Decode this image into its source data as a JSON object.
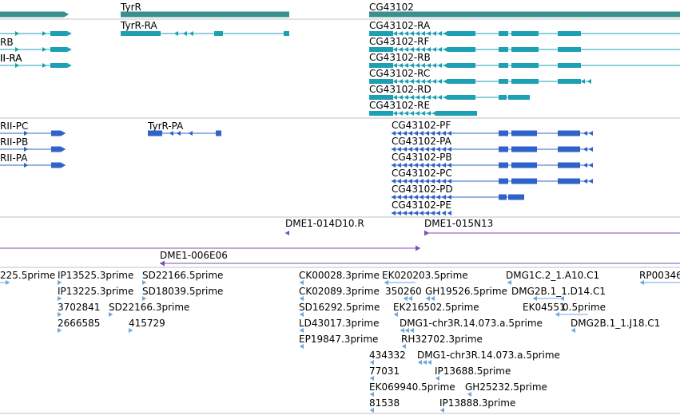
{
  "colors": {
    "background": "#ffffff",
    "divider": "#c0c0c0",
    "gene": "#3a8f8f",
    "transcript": "#1ea0b4",
    "protein": "#2f63c9",
    "clone": "#7d4fb5",
    "est": "#6fa8dc"
  },
  "genes": [
    {
      "label": "",
      "kind": "gene"
    },
    {
      "label": "TyrR",
      "kind": "gene"
    },
    {
      "label": "CG43102",
      "kind": "gene"
    }
  ],
  "transcripts": [
    {
      "label": "RB"
    },
    {
      "label": "II-RA"
    },
    {
      "label": "TyrR-RA"
    },
    {
      "label": "CG43102-RA"
    },
    {
      "label": "CG43102-RF"
    },
    {
      "label": "CG43102-RB"
    },
    {
      "label": "CG43102-RC"
    },
    {
      "label": "CG43102-RD"
    },
    {
      "label": "CG43102-RE"
    }
  ],
  "proteins": [
    {
      "label": "RII-PC"
    },
    {
      "label": "RII-PB"
    },
    {
      "label": "RII-PA"
    },
    {
      "label": "TyrR-PA"
    },
    {
      "label": "CG43102-PF"
    },
    {
      "label": "CG43102-PA"
    },
    {
      "label": "CG43102-PB"
    },
    {
      "label": "CG43102-PC"
    },
    {
      "label": "CG43102-PD"
    },
    {
      "label": "CG43102-PE"
    }
  ],
  "clones": [
    {
      "label": "DME1-014D10.R"
    },
    {
      "label": "DME1-015N13"
    },
    {
      "label": "DME1-006E06"
    }
  ],
  "ests": [
    {
      "label": "225.5prime"
    },
    {
      "label": "IP13525.3prime"
    },
    {
      "label": "SD22166.5prime"
    },
    {
      "label": "CK00028.3prime"
    },
    {
      "label": "EK020203.5prime"
    },
    {
      "label": "DMG1C.2_1.A10.C1"
    },
    {
      "label": "RP00346"
    },
    {
      "label": "IP13225.3prime"
    },
    {
      "label": "SD18039.5prime"
    },
    {
      "label": "CK02089.3prime"
    },
    {
      "label": "350260"
    },
    {
      "label": "GH19526.5prime"
    },
    {
      "label": "DMG2B.1_1.D14.C1"
    },
    {
      "label": "3702841"
    },
    {
      "label": "SD22166.3prime"
    },
    {
      "label": "SD16292.5prime"
    },
    {
      "label": "EK216502.5prime"
    },
    {
      "label": "EK04551"
    },
    {
      "label": "0.5prime"
    },
    {
      "label": "2666585"
    },
    {
      "label": "415729"
    },
    {
      "label": "LD43017.3prime"
    },
    {
      "label": "DMG1-chr3R.14.073.a.5prime"
    },
    {
      "label": "DMG2B.1_1.J18.C1"
    },
    {
      "label": "EP19847.3prime"
    },
    {
      "label": "RH32702.3prime"
    },
    {
      "label": "434332"
    },
    {
      "label": "DMG1-chr3R.14.073.a.5prime"
    },
    {
      "label": "77031"
    },
    {
      "label": "IP13688.5prime"
    },
    {
      "label": "EK069940.5prime"
    },
    {
      "label": "GH25232.5prime"
    },
    {
      "label": "81538"
    },
    {
      "label": "IP13888.3prime"
    }
  ]
}
